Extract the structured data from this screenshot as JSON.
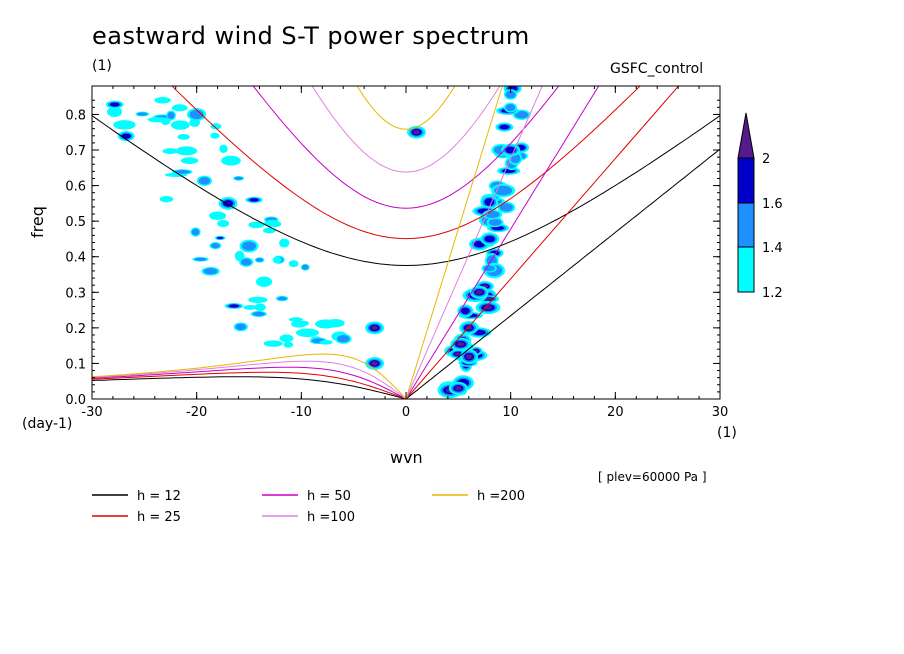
{
  "chart_data": {
    "type": "contour",
    "title": "eastward wind S-T power spectrum",
    "subtitle": "GSFC_control",
    "y_units": "(1)",
    "x_units": "(1)",
    "x_units_left": "(day-1)",
    "xlabel": "wvn",
    "ylabel": "freq",
    "annotation": "[ plev=60000 Pa ]",
    "xlim": [
      -30,
      30
    ],
    "ylim": [
      0,
      0.88
    ],
    "x_ticks": [
      "-30",
      "-20",
      "-10",
      "0",
      "10",
      "20",
      "30"
    ],
    "x_tick_values": [
      -30,
      -20,
      -10,
      0,
      10,
      20,
      30
    ],
    "y_ticks": [
      "0.0",
      "0.1",
      "0.2",
      "0.3",
      "0.4",
      "0.5",
      "0.6",
      "0.7",
      "0.8"
    ],
    "y_tick_values": [
      0,
      0.1,
      0.2,
      0.3,
      0.4,
      0.5,
      0.6,
      0.7,
      0.8
    ],
    "colorbar": {
      "levels": [
        "1.2",
        "1.4",
        "1.6",
        "2"
      ],
      "colors": [
        "#00ffff",
        "#1e90ff",
        "#0000cd",
        "#551a8b"
      ]
    },
    "dispersion_curves": [
      {
        "name": "h = 12",
        "h": 12,
        "color": "#000000"
      },
      {
        "name": "h = 25",
        "h": 25,
        "color": "#e00000"
      },
      {
        "name": "h = 50",
        "h": 50,
        "color": "#c800c8"
      },
      {
        "name": "h =100",
        "h": 100,
        "color": "#e080e0"
      },
      {
        "name": "h =200",
        "h": 200,
        "color": "#e6b800"
      }
    ],
    "high_power_regions": [
      {
        "wvn": 7,
        "freq": 0.3,
        "level": 2
      },
      {
        "wvn": 6,
        "freq": 0.2,
        "level": 2
      },
      {
        "wvn": 8,
        "freq": 0.45,
        "level": 1.6
      },
      {
        "wvn": 10,
        "freq": 0.7,
        "level": 1.6
      },
      {
        "wvn": -3,
        "freq": 0.1,
        "level": 2
      },
      {
        "wvn": -3,
        "freq": 0.2,
        "level": 2
      },
      {
        "wvn": 5,
        "freq": 0.03,
        "level": 2
      },
      {
        "wvn": 1,
        "freq": 0.75,
        "level": 2
      },
      {
        "wvn": -17,
        "freq": 0.55,
        "level": 1.6
      },
      {
        "wvn": -20,
        "freq": 0.8,
        "level": 1.4
      },
      {
        "wvn": -15,
        "freq": 0.43,
        "level": 1.4
      }
    ]
  }
}
